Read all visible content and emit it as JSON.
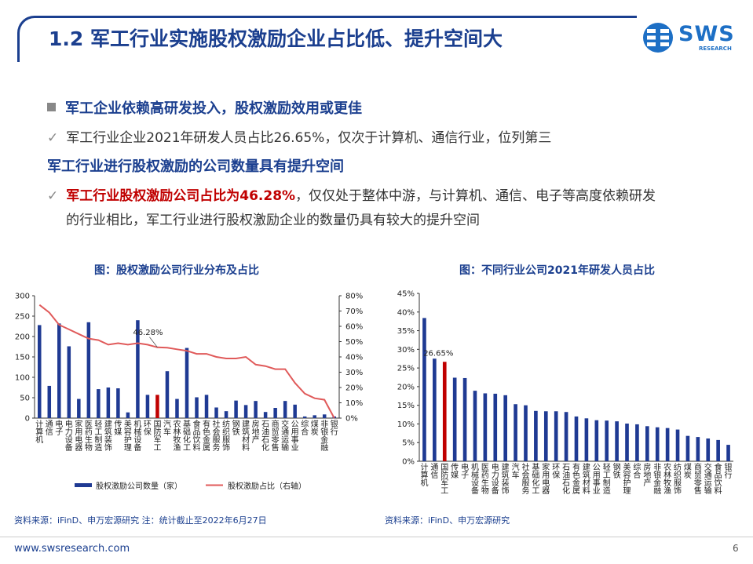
{
  "header": {
    "title": "1.2 军工行业实施股权激励企业占比低、提升空间大",
    "logo_text": "SWS",
    "logo_sub": "RESEARCH"
  },
  "bullets": {
    "b1": "军工企业依赖高研发投入，股权激励效用或更佳",
    "check": "✓",
    "b2": "军工行业企业2021年研发人员占比26.65%，仅次于计算机、通信行业，位列第三",
    "b3": "军工行业进行股权激励的公司数量具有提升空间",
    "b4_highlight": "军工行业股权激励公司占比为46.28%",
    "b4_rest": "，仅仅处于整体中游，与计算机、通信、电子等高度依赖研发",
    "b5": "的行业相比，军工行业进行股权激励企业的数量仍具有较大的提升空间"
  },
  "chart1_title": "图：股权激励公司行业分布及占比",
  "chart2_title": "图：不同行业公司2021年研发人员占比",
  "source1": "资料来源：iFinD、申万宏源研究 注：统计截止至2022年6月27日",
  "source2": "资料来源：iFinD、申万宏源研究",
  "footer": {
    "url": "www.swsresearch.com",
    "page": "6"
  },
  "colors": {
    "navy": "#1b3f8f",
    "bar": "#1f3a93",
    "highlight": "#c00000",
    "line": "#e05a5a"
  },
  "chart_data": [
    {
      "type": "bar",
      "title": "图：股权激励公司行业分布及占比",
      "categories": [
        "计算机",
        "通信",
        "电子",
        "电力设备",
        "家用电器",
        "医药生物",
        "轻工制造",
        "建筑装饰",
        "传媒",
        "美容护理",
        "机械设备",
        "环保",
        "国防军工",
        "汽车",
        "农林牧渔",
        "基础化工",
        "食品饮料",
        "有色金属",
        "社会服务",
        "纺织服饰",
        "钢铁",
        "建筑材料",
        "房地产",
        "石油石化",
        "商贸零售",
        "交通运输",
        "公用事业",
        "综合",
        "煤炭",
        "非银金融",
        "银行"
      ],
      "series": [
        {
          "name": "股权激励公司数量（家）",
          "axis": "left",
          "values": [
            228,
            79,
            232,
            176,
            47,
            235,
            71,
            75,
            73,
            14,
            240,
            57,
            57,
            115,
            47,
            172,
            51,
            57,
            26,
            17,
            43,
            32,
            42,
            15,
            25,
            42,
            33,
            4,
            7,
            9,
            4
          ]
        },
        {
          "name": "股权激励占比（右轴）",
          "axis": "right",
          "type": "line",
          "values": [
            0.74,
            0.69,
            0.61,
            0.58,
            0.55,
            0.52,
            0.51,
            0.48,
            0.49,
            0.48,
            0.49,
            0.48,
            0.4628,
            0.46,
            0.45,
            0.44,
            0.42,
            0.42,
            0.4,
            0.39,
            0.39,
            0.4,
            0.35,
            0.34,
            0.32,
            0.32,
            0.23,
            0.16,
            0.13,
            0.12,
            0.0
          ]
        }
      ],
      "highlight_category": "国防军工",
      "annotation": "46.28%",
      "ylim": [
        0,
        300
      ],
      "yticks": [
        "0",
        "50",
        "100",
        "150",
        "200",
        "250",
        "300"
      ],
      "y2lim": [
        0,
        0.8
      ],
      "y2ticks": [
        "0%",
        "10%",
        "20%",
        "30%",
        "40%",
        "50%",
        "60%",
        "70%",
        "80%"
      ],
      "legend": "bottom"
    },
    {
      "type": "bar",
      "title": "图：不同行业公司2021年研发人员占比",
      "categories": [
        "计算机",
        "通信",
        "国防军工",
        "传媒",
        "电子",
        "机械设备",
        "医药生物",
        "电力设备",
        "建筑装饰",
        "汽车",
        "社会服务",
        "基础化工",
        "家用电器",
        "环保",
        "石油石化",
        "有色金属",
        "建筑材料",
        "公用事业",
        "轻工制造",
        "钢铁",
        "美容护理",
        "综合",
        "房地产",
        "非银金融",
        "农林牧渔",
        "纺织服饰",
        "煤炭",
        "商贸零售",
        "交通运输",
        "食品饮料",
        "银行"
      ],
      "values": [
        0.384,
        0.275,
        0.2665,
        0.224,
        0.223,
        0.189,
        0.182,
        0.181,
        0.177,
        0.153,
        0.15,
        0.135,
        0.134,
        0.134,
        0.132,
        0.12,
        0.115,
        0.11,
        0.109,
        0.107,
        0.101,
        0.099,
        0.094,
        0.091,
        0.089,
        0.085,
        0.068,
        0.065,
        0.061,
        0.057,
        0.044
      ],
      "highlight_category": "国防军工",
      "annotation": "26.65%",
      "ylim": [
        0,
        0.45
      ],
      "yticks": [
        "0%",
        "5%",
        "10%",
        "15%",
        "20%",
        "25%",
        "30%",
        "35%",
        "40%",
        "45%"
      ]
    }
  ]
}
